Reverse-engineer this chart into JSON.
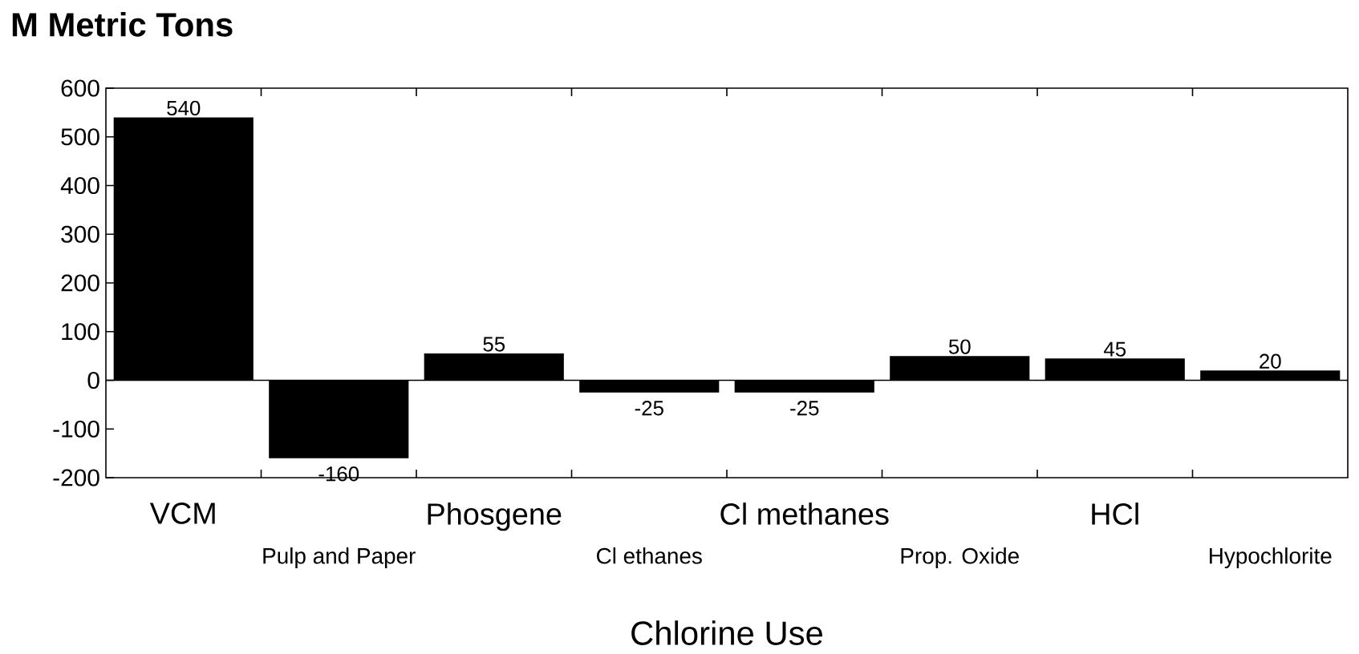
{
  "chart_data": {
    "type": "bar",
    "ylabel": "M Metric Tons",
    "xlabel": "Chlorine Use",
    "categories": [
      "VCM",
      "Pulp and Paper",
      "Phosgene",
      "Cl ethanes",
      "Cl methanes",
      "Prop. Oxide",
      "HCl",
      "Hypochlorite"
    ],
    "values": [
      540,
      -160,
      55,
      -25,
      -25,
      50,
      45,
      20
    ],
    "color": "#000000",
    "ylim": [
      -200,
      600
    ],
    "yticks": [
      -200,
      -100,
      0,
      100,
      200,
      300,
      400,
      500,
      600
    ],
    "data_labels": true
  }
}
